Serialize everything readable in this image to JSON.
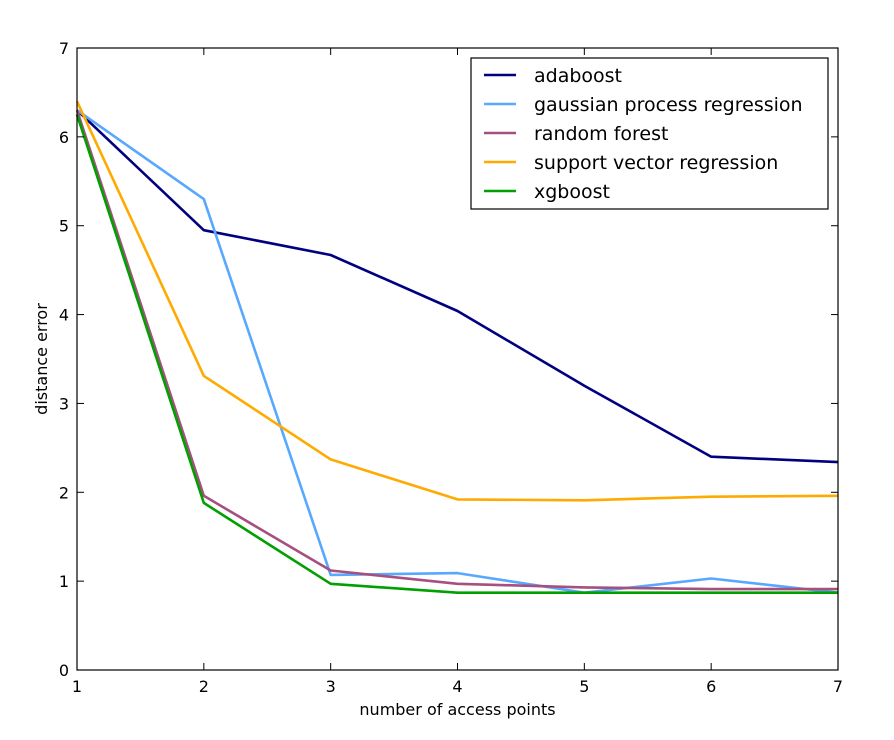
{
  "chart_data": {
    "type": "line",
    "title": "",
    "xlabel": "number of access points",
    "ylabel": "distance error",
    "x": [
      1,
      2,
      3,
      4,
      5,
      6,
      7
    ],
    "xlim": [
      1,
      7
    ],
    "ylim": [
      0,
      7
    ],
    "xticks": [
      "1",
      "2",
      "3",
      "4",
      "5",
      "6",
      "7"
    ],
    "yticks": [
      "0",
      "1",
      "2",
      "3",
      "4",
      "5",
      "6",
      "7"
    ],
    "grid": false,
    "legend_position": "top-right",
    "series": [
      {
        "name": "adaboost",
        "color": "#000080",
        "values": [
          6.3,
          4.95,
          4.67,
          4.04,
          3.2,
          2.4,
          2.34
        ]
      },
      {
        "name": "gaussian process regression",
        "color": "#58a8ff",
        "values": [
          6.3,
          5.3,
          1.07,
          1.09,
          0.87,
          1.03,
          0.87
        ]
      },
      {
        "name": "random forest",
        "color": "#a5507e",
        "values": [
          6.3,
          1.96,
          1.12,
          0.97,
          0.93,
          0.91,
          0.91
        ]
      },
      {
        "name": "support vector regression",
        "color": "#ffaa00",
        "values": [
          6.4,
          3.31,
          2.37,
          1.92,
          1.91,
          1.95,
          1.96
        ]
      },
      {
        "name": "xgboost",
        "color": "#00a000",
        "values": [
          6.25,
          1.88,
          0.97,
          0.87,
          0.87,
          0.87,
          0.87
        ]
      }
    ]
  }
}
